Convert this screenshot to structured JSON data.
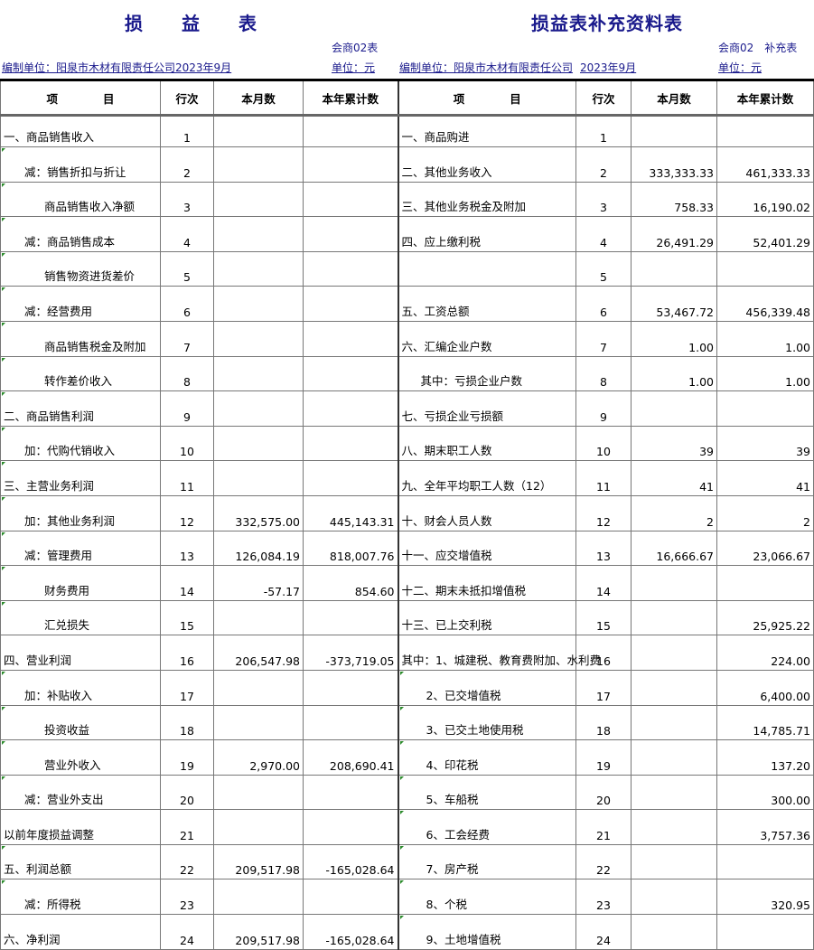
{
  "left": {
    "title": "损　　益　　表",
    "form_code": "会商02表",
    "unit": "单位：元",
    "org": "编制单位：阳泉市木材有限责任公司2023年9月",
    "headers": [
      "项　　　　目",
      "行次",
      "本月数",
      "本年累计数"
    ],
    "rows": [
      {
        "label": "一、商品销售收入",
        "line": "1",
        "month": "",
        "ytd": "",
        "indent": 0
      },
      {
        "label": "减：销售折扣与折让",
        "line": "2",
        "month": "",
        "ytd": "",
        "indent": 1
      },
      {
        "label": "商品销售收入净额",
        "line": "3",
        "month": "",
        "ytd": "",
        "indent": 2
      },
      {
        "label": "减：商品销售成本",
        "line": "4",
        "month": "",
        "ytd": "",
        "indent": 1
      },
      {
        "label": "销售物资进货差价",
        "line": "5",
        "month": "",
        "ytd": "",
        "indent": 2
      },
      {
        "label": "减：经营费用",
        "line": "6",
        "month": "",
        "ytd": "",
        "indent": 1
      },
      {
        "label": "商品销售税金及附加",
        "line": "7",
        "month": "",
        "ytd": "",
        "indent": 2
      },
      {
        "label": "转作差价收入",
        "line": "8",
        "month": "",
        "ytd": "",
        "indent": 2
      },
      {
        "label": "二、商品销售利润",
        "line": "9",
        "month": "",
        "ytd": "",
        "indent": 0
      },
      {
        "label": "加：代购代销收入",
        "line": "10",
        "month": "",
        "ytd": "",
        "indent": 1
      },
      {
        "label": "三、主营业务利润",
        "line": "11",
        "month": "",
        "ytd": "",
        "indent": 0
      },
      {
        "label": "加：其他业务利润",
        "line": "12",
        "month": "332,575.00",
        "ytd": "445,143.31",
        "indent": 1
      },
      {
        "label": "减：管理费用",
        "line": "13",
        "month": "126,084.19",
        "ytd": "818,007.76",
        "indent": 1
      },
      {
        "label": "财务费用",
        "line": "14",
        "month": "-57.17",
        "ytd": "854.60",
        "indent": 2
      },
      {
        "label": "汇兑损失",
        "line": "15",
        "month": "",
        "ytd": "",
        "indent": 2
      },
      {
        "label": "四、营业利润",
        "line": "16",
        "month": "206,547.98",
        "ytd": "-373,719.05",
        "indent": 0
      },
      {
        "label": "加：补贴收入",
        "line": "17",
        "month": "",
        "ytd": "",
        "indent": 1
      },
      {
        "label": "投资收益",
        "line": "18",
        "month": "",
        "ytd": "",
        "indent": 2
      },
      {
        "label": "营业外收入",
        "line": "19",
        "month": "2,970.00",
        "ytd": "208,690.41",
        "indent": 2
      },
      {
        "label": "减：营业外支出",
        "line": "20",
        "month": "",
        "ytd": "",
        "indent": 1
      },
      {
        "label": "以前年度损益调整",
        "line": "21",
        "month": "",
        "ytd": "",
        "indent": 0
      },
      {
        "label": "五、利润总额",
        "line": "22",
        "month": "209,517.98",
        "ytd": "-165,028.64",
        "indent": 0
      },
      {
        "label": "减：所得税",
        "line": "23",
        "month": "",
        "ytd": "",
        "indent": 1
      },
      {
        "label": "六、净利润",
        "line": "24",
        "month": "209,517.98",
        "ytd": "-165,028.64",
        "indent": 0
      }
    ]
  },
  "right": {
    "title": "损益表补充资料表",
    "form_code": "会商02　补充表",
    "unit": "单位：元",
    "org": "编制单位：阳泉市木材有限责任公司",
    "period": "2023年9月",
    "headers": [
      "项　　　　目",
      "行次",
      "本月数",
      "本年累计数"
    ],
    "rows": [
      {
        "label": "一、商品购进",
        "line": "1",
        "month": "",
        "ytd": "",
        "indent": 0
      },
      {
        "label": "二、其他业务收入",
        "line": "2",
        "month": "333,333.33",
        "ytd": "461,333.33",
        "indent": 0
      },
      {
        "label": "三、其他业务税金及附加",
        "line": "3",
        "month": "758.33",
        "ytd": "16,190.02",
        "indent": 0
      },
      {
        "label": "四、应上缴利税",
        "line": "4",
        "month": "26,491.29",
        "ytd": "52,401.29",
        "indent": 0
      },
      {
        "label": "",
        "line": "5",
        "month": "",
        "ytd": "",
        "indent": 0
      },
      {
        "label": "五、工资总额",
        "line": "6",
        "month": "53,467.72",
        "ytd": "456,339.48",
        "indent": 0
      },
      {
        "label": "六、汇编企业户数",
        "line": "7",
        "month": "1.00",
        "ytd": "1.00",
        "indent": 0
      },
      {
        "label": "其中：亏损企业户数",
        "line": "8",
        "month": "1.00",
        "ytd": "1.00",
        "indent": 2
      },
      {
        "label": "七、亏损企业亏损额",
        "line": "9",
        "month": "",
        "ytd": "",
        "indent": 0
      },
      {
        "label": "八、期末职工人数",
        "line": "10",
        "month": "39",
        "ytd": "39",
        "indent": 0
      },
      {
        "label": "九、全年平均职工人数（12）",
        "line": "11",
        "month": "41",
        "ytd": "41",
        "indent": 0
      },
      {
        "label": "十、财会人员人数",
        "line": "12",
        "month": "2",
        "ytd": "2",
        "indent": 0
      },
      {
        "label": "十一、应交增值税",
        "line": "13",
        "month": "16,666.67",
        "ytd": "23,066.67",
        "indent": 0
      },
      {
        "label": "十二、期末未抵扣增值税",
        "line": "14",
        "month": "",
        "ytd": "",
        "indent": 0
      },
      {
        "label": "十三、已上交利税",
        "line": "15",
        "month": "",
        "ytd": "25,925.22",
        "indent": 0
      },
      {
        "label": "其中：1、城建税、教育费附加、水利费",
        "line": "16",
        "month": "",
        "ytd": "224.00",
        "indent": 0
      },
      {
        "label": "2、已交增值税",
        "line": "17",
        "month": "",
        "ytd": "6,400.00",
        "indent": 1
      },
      {
        "label": "3、已交土地使用税",
        "line": "18",
        "month": "",
        "ytd": "14,785.71",
        "indent": 1
      },
      {
        "label": "4、印花税",
        "line": "19",
        "month": "",
        "ytd": "137.20",
        "indent": 1
      },
      {
        "label": "5、车船税",
        "line": "20",
        "month": "",
        "ytd": "300.00",
        "indent": 1
      },
      {
        "label": "6、工会经费",
        "line": "21",
        "month": "",
        "ytd": "3,757.36",
        "indent": 1
      },
      {
        "label": "7、房产税",
        "line": "22",
        "month": "",
        "ytd": "",
        "indent": 1
      },
      {
        "label": "8、个税",
        "line": "23",
        "month": "",
        "ytd": "320.95",
        "indent": 1
      },
      {
        "label": "9、土地增值税",
        "line": "24",
        "month": "",
        "ytd": "",
        "indent": 1
      }
    ]
  },
  "colors": {
    "title": "#1a1a8c",
    "cell_marker": "#2a8a2a"
  }
}
